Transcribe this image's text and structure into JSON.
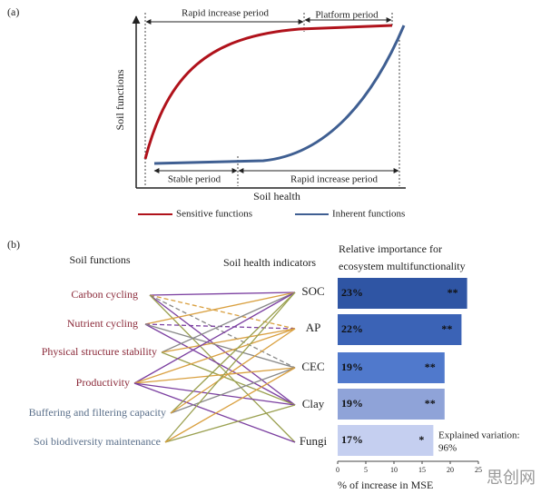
{
  "panel_a": {
    "label": "(a)",
    "y_label": "Soil functions",
    "x_label": "Soil health",
    "periods_top": [
      "Rapid increase period",
      "Platform period"
    ],
    "periods_bottom": [
      "Stable period",
      "Rapid increase period"
    ],
    "legend": [
      {
        "name": "Sensitive functions",
        "color": "#b0121b"
      },
      {
        "name": "Inherent functions",
        "color": "#3f5f92"
      }
    ]
  },
  "panel_b": {
    "label": "(b)",
    "functions_title": "Soil functions",
    "indicators_title": "Soil health indicators",
    "functions": [
      "Carbon cycling",
      "Nutrient cycling",
      "Physical structure stability",
      "Productivity",
      "Buffering and filtering capacity",
      "Soi biodiversity maintenance"
    ],
    "explained_variation": [
      "Explained variation:",
      "96%"
    ]
  },
  "chart_data": {
    "type": "bar",
    "orientation": "horizontal",
    "title": [
      "Relative importance for",
      "ecosystem multifunctionality"
    ],
    "categories": [
      "SOC",
      "AP",
      "CEC",
      "Clay",
      "Fungi"
    ],
    "values": [
      23,
      22,
      19,
      19,
      17
    ],
    "value_labels": [
      "23%",
      "22%",
      "19%",
      "19%",
      "17%"
    ],
    "significance": [
      "**",
      "**",
      "**",
      "**",
      "*"
    ],
    "colors": [
      "#2f55a4",
      "#3b63b6",
      "#5079cc",
      "#8fa3d8",
      "#c5cff0"
    ],
    "xlim": [
      0,
      25
    ],
    "xticks": [
      0,
      5,
      10,
      15,
      20,
      25
    ],
    "x_label": "% of increase in MSE"
  },
  "watermark": "思创网"
}
